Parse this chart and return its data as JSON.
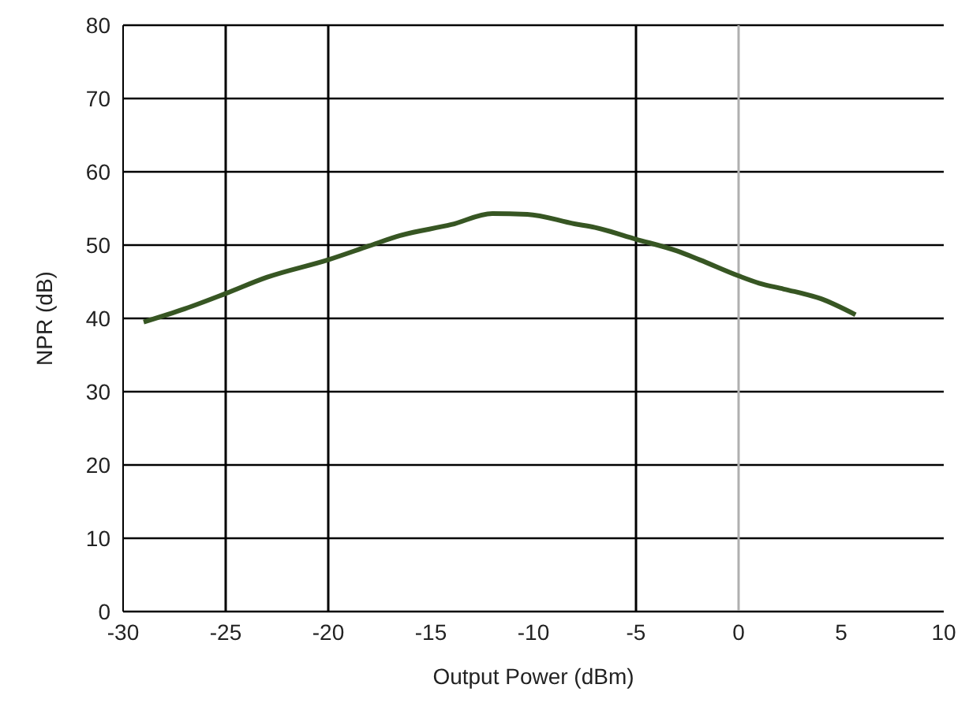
{
  "chart_data": {
    "type": "line",
    "xlabel": "Output Power (dBm)",
    "ylabel": "NPR (dB)",
    "x": [
      -29,
      -27,
      -25,
      -23,
      -20,
      -18,
      -16.5,
      -14,
      -12,
      -10.3,
      -8,
      -7,
      -5,
      -3,
      -1.9,
      0,
      1,
      2.2,
      4,
      5.7
    ],
    "series": [
      {
        "color": "#375623",
        "values": [
          39.5,
          41.3,
          43.4,
          45.6,
          48,
          49.9,
          51.3,
          52.8,
          54.3,
          54.2,
          52.9,
          52.4,
          50.8,
          49.2,
          48,
          45.8,
          44.8,
          44,
          42.7,
          40.5
        ]
      }
    ],
    "xlim": [
      -30,
      10
    ],
    "xticks": [
      -30,
      -25,
      -20,
      -15,
      -10,
      -5,
      0,
      5,
      10
    ],
    "ylim": [
      0,
      80
    ],
    "yticks": [
      0,
      10,
      20,
      30,
      40,
      50,
      60,
      70,
      80
    ],
    "grid": "y",
    "marker": "none",
    "line_style": "solid",
    "ref_lines": [
      {
        "axis": "x",
        "value": -25,
        "color": "#000000"
      },
      {
        "axis": "x",
        "value": -20,
        "color": "#000000"
      },
      {
        "axis": "x",
        "value": -5,
        "color": "#000000"
      },
      {
        "axis": "x",
        "value": 0,
        "color": "#b0b0b0"
      }
    ]
  }
}
